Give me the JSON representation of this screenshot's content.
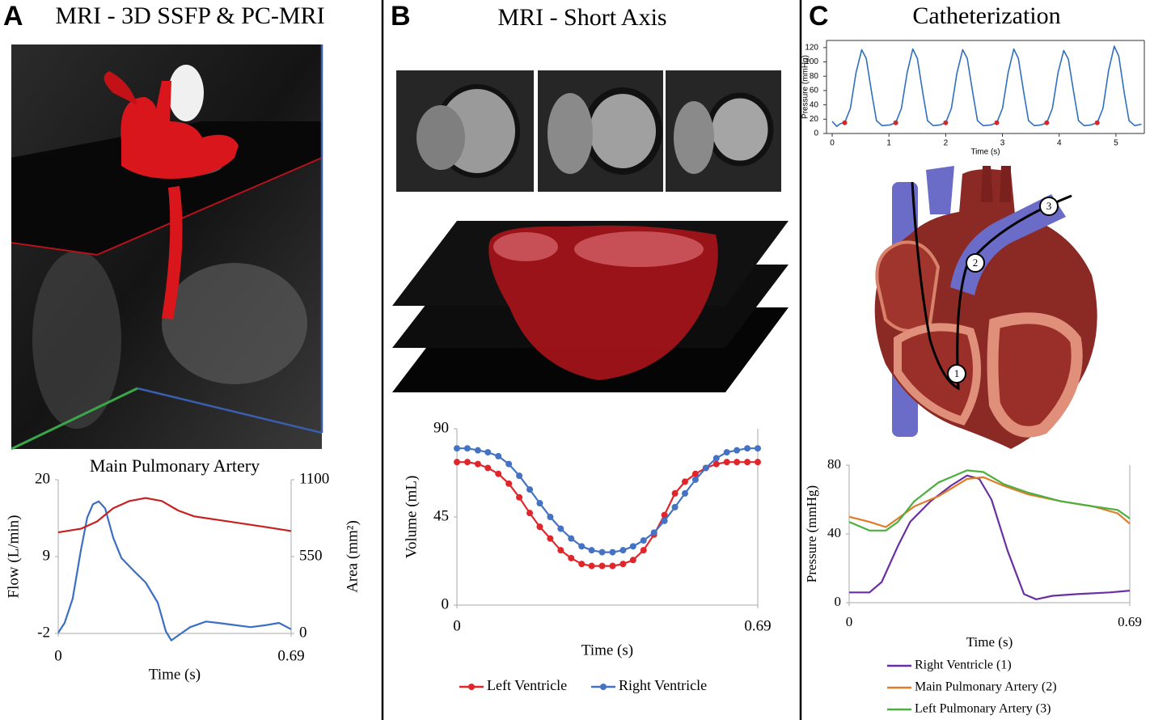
{
  "panels": [
    {
      "letter": "A",
      "title": "MRI - 3D SSFP & PC-MRI"
    },
    {
      "letter": "B",
      "title": "MRI - Short Axis"
    },
    {
      "letter": "C",
      "title": "Catheterization"
    }
  ],
  "catheter_labels": [
    "1",
    "2",
    "3"
  ],
  "chart_data": [
    {
      "type": "line",
      "title": "Main Pulmonary Artery",
      "xlabel": "Time (s)",
      "ylabel": "Flow (L/min)",
      "y2label": "Area (mm²)",
      "xlim": [
        0,
        0.69
      ],
      "xticks": [
        0,
        0.69
      ],
      "ylim": [
        -2,
        20
      ],
      "yticks": [
        -2,
        9,
        20
      ],
      "y2lim": [
        0,
        1100
      ],
      "y2ticks": [
        0,
        550,
        1100
      ],
      "series": [
        {
          "color": "#3a6fc4",
          "axis": "y",
          "x": [
            0,
            0.019,
            0.043,
            0.067,
            0.086,
            0.103,
            0.12,
            0.139,
            0.163,
            0.187,
            0.223,
            0.259,
            0.295,
            0.319,
            0.335,
            0.355,
            0.391,
            0.438,
            0.474,
            0.522,
            0.57,
            0.618,
            0.654,
            0.69
          ],
          "values": [
            -1.9,
            -0.5,
            3.0,
            9.9,
            14.6,
            16.5,
            16.9,
            15.9,
            11.7,
            8.8,
            7.0,
            5.3,
            2.4,
            -1.7,
            -3.0,
            -2.3,
            -1.1,
            -0.3,
            -0.5,
            -0.8,
            -1.1,
            -0.8,
            -0.5,
            -1.4
          ]
        },
        {
          "color": "#c8201e",
          "axis": "y2",
          "x": [
            0,
            0.067,
            0.115,
            0.163,
            0.211,
            0.259,
            0.307,
            0.355,
            0.403,
            0.474,
            0.546,
            0.618,
            0.69
          ],
          "values": [
            723,
            749,
            801,
            896,
            948,
            969,
            948,
            880,
            838,
            812,
            786,
            760,
            733
          ]
        }
      ]
    },
    {
      "type": "line",
      "xlabel": "Time (s)",
      "ylabel": "Volume (mL)",
      "xlim": [
        0,
        0.69
      ],
      "xticks": [
        0,
        0.69
      ],
      "ylim": [
        0,
        90
      ],
      "yticks": [
        0,
        45,
        90
      ],
      "legend": "bottom",
      "x": [
        0,
        0.024,
        0.048,
        0.071,
        0.095,
        0.119,
        0.143,
        0.167,
        0.19,
        0.214,
        0.238,
        0.262,
        0.286,
        0.309,
        0.333,
        0.357,
        0.381,
        0.404,
        0.428,
        0.452,
        0.476,
        0.5,
        0.523,
        0.547,
        0.571,
        0.595,
        0.619,
        0.642,
        0.666,
        0.69
      ],
      "series": [
        {
          "name": "Left Ventricle",
          "color": "#e0262b",
          "marker": true,
          "values": [
            73,
            73,
            72,
            70,
            67,
            62,
            55,
            47,
            40,
            34,
            28,
            24,
            21,
            20,
            20,
            20,
            21,
            23,
            28,
            36,
            46,
            57,
            63,
            67,
            70,
            72,
            73,
            73,
            73,
            73
          ]
        },
        {
          "name": "Right Ventricle",
          "color": "#4472c4",
          "marker": true,
          "values": [
            80,
            80,
            79,
            78,
            76,
            72,
            66,
            59,
            52,
            45,
            39,
            34,
            30,
            28,
            27,
            27,
            28,
            30,
            33,
            37,
            43,
            50,
            57,
            64,
            70,
            75,
            78,
            79,
            80,
            80
          ]
        }
      ]
    },
    {
      "type": "line",
      "xlabel": "Time (s)",
      "ylabel": "Pressure (mmHg)",
      "box": true,
      "xlim": [
        -0.1,
        5.5
      ],
      "xticks": [
        0,
        1,
        2,
        3,
        4,
        5
      ],
      "ylim": [
        0,
        130
      ],
      "yticks": [
        0,
        20,
        40,
        60,
        80,
        100,
        120
      ],
      "series": [
        {
          "color": "#2f6fc0",
          "x": [
            0,
            0.08,
            0.15,
            0.22,
            0.32,
            0.42,
            0.52,
            0.6,
            0.7,
            0.78,
            0.88,
            1.02,
            1.12,
            1.22,
            1.32,
            1.42,
            1.5,
            1.6,
            1.68,
            1.78,
            1.9,
            2.0,
            2.1,
            2.2,
            2.3,
            2.38,
            2.48,
            2.56,
            2.66,
            2.8,
            2.9,
            3.0,
            3.1,
            3.2,
            3.28,
            3.38,
            3.46,
            3.56,
            3.68,
            3.78,
            3.88,
            3.98,
            4.08,
            4.16,
            4.26,
            4.34,
            4.44,
            4.56,
            4.67,
            4.77,
            4.87,
            4.97,
            5.05,
            5.15,
            5.23,
            5.33,
            5.45
          ],
          "values": [
            17,
            10,
            14,
            15,
            35,
            85,
            117,
            105,
            55,
            18,
            11,
            12,
            15,
            35,
            85,
            118,
            105,
            55,
            18,
            11,
            12,
            15,
            35,
            85,
            117,
            105,
            55,
            18,
            11,
            12,
            15,
            35,
            85,
            118,
            105,
            55,
            18,
            11,
            12,
            15,
            35,
            85,
            116,
            104,
            55,
            18,
            11,
            12,
            15,
            35,
            88,
            122,
            108,
            55,
            18,
            11,
            13
          ]
        },
        {
          "color": "#d62728",
          "type": "scatter",
          "x": [
            0.22,
            1.12,
            2.0,
            2.9,
            3.78,
            4.67
          ],
          "values": [
            15,
            15,
            15,
            15,
            15,
            15
          ]
        }
      ]
    },
    {
      "type": "line",
      "xlabel": "Time (s)",
      "ylabel": "Pressure (mmHg)",
      "xlim": [
        0,
        0.69
      ],
      "xticks": [
        0,
        0.69
      ],
      "ylim": [
        0,
        80
      ],
      "yticks": [
        0,
        40,
        80
      ],
      "legend": "bottom",
      "series": [
        {
          "name": "Right Ventricle (1)",
          "color": "#6a2fa0",
          "x": [
            0,
            0.05,
            0.08,
            0.12,
            0.15,
            0.2,
            0.25,
            0.29,
            0.32,
            0.35,
            0.39,
            0.43,
            0.46,
            0.5,
            0.56,
            0.64,
            0.69
          ],
          "values": [
            6,
            6,
            12,
            33,
            47,
            59,
            68,
            74,
            72,
            60,
            30,
            5,
            2,
            4,
            5,
            6,
            7
          ]
        },
        {
          "name": "Main Pulmonary Artery (2)",
          "color": "#e07b2a",
          "x": [
            0,
            0.05,
            0.09,
            0.12,
            0.16,
            0.22,
            0.29,
            0.33,
            0.38,
            0.44,
            0.52,
            0.6,
            0.66,
            0.69
          ],
          "values": [
            50,
            47,
            44,
            49,
            56,
            62,
            72,
            73,
            68,
            63,
            59,
            56,
            52,
            46
          ]
        },
        {
          "name": "Left Pulmonary Artery (3)",
          "color": "#4caf3f",
          "x": [
            0,
            0.05,
            0.09,
            0.12,
            0.16,
            0.22,
            0.29,
            0.33,
            0.38,
            0.44,
            0.52,
            0.6,
            0.66,
            0.69
          ],
          "values": [
            47,
            42,
            42,
            47,
            59,
            70,
            77,
            76,
            69,
            64,
            59,
            56,
            54,
            49
          ]
        }
      ]
    }
  ]
}
